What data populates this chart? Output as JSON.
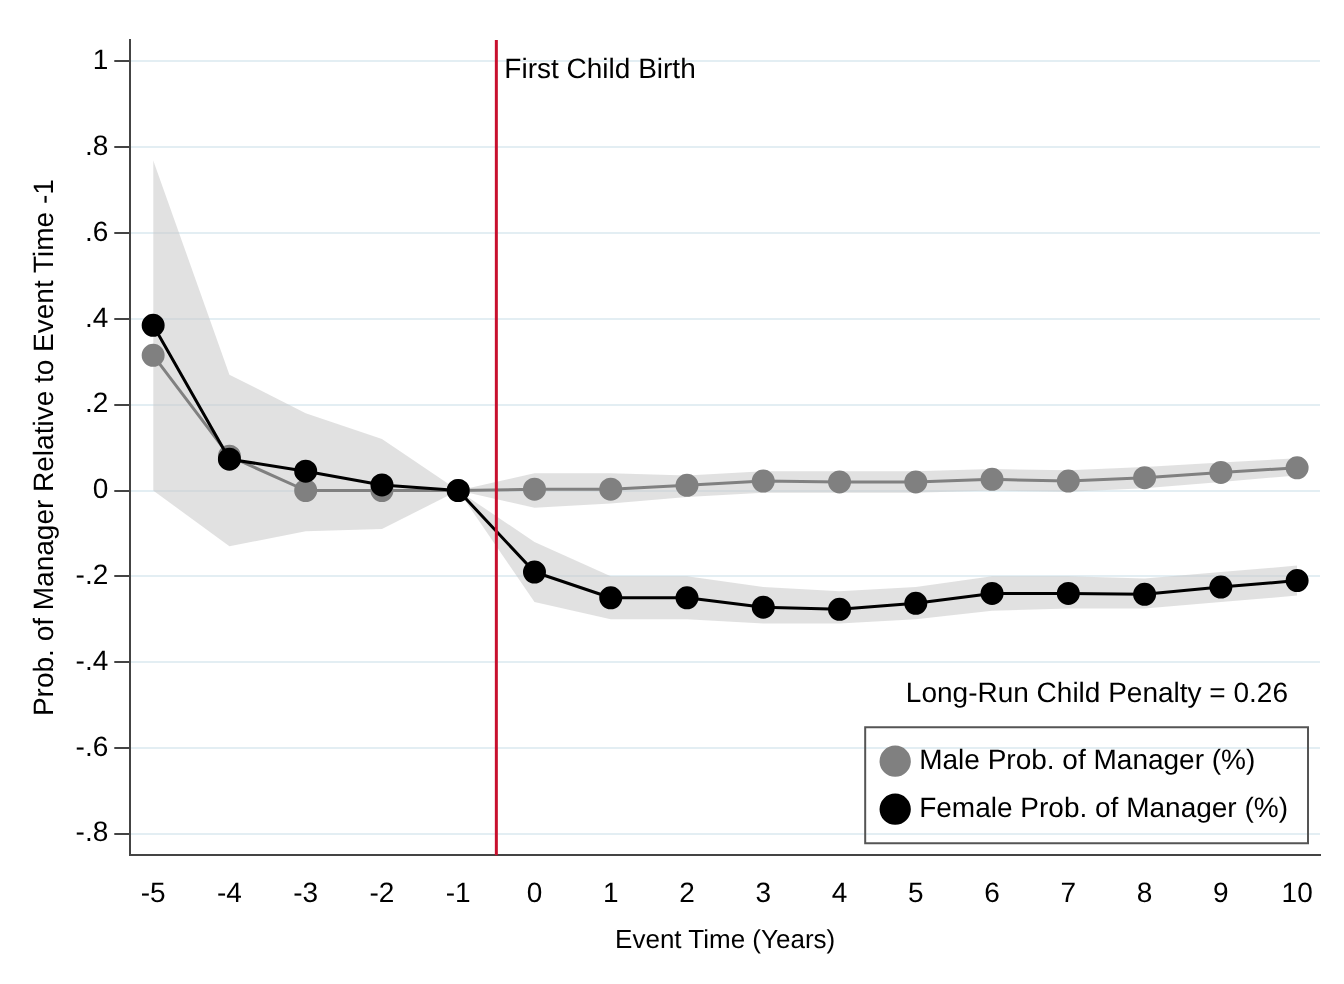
{
  "chart_data": {
    "type": "line",
    "xlabel": "Event Time (Years)",
    "ylabel": "Prob. of Manager Relative to Event Time -1",
    "x": [
      -5,
      -4,
      -3,
      -2,
      -1,
      0,
      1,
      2,
      3,
      4,
      5,
      6,
      7,
      8,
      9,
      10
    ],
    "series": [
      {
        "name": "Male Prob. of Manager (%)",
        "color": "#808080",
        "values": [
          0.315,
          0.08,
          0,
          0,
          0,
          0.003,
          0.003,
          0.012,
          0.022,
          0.02,
          0.02,
          0.026,
          0.022,
          0.03,
          0.042,
          0.053
        ],
        "lower": [
          null,
          null,
          null,
          null,
          0,
          -0.04,
          -0.03,
          -0.015,
          -0.005,
          -0.005,
          -0.005,
          0,
          -0.003,
          0.005,
          0.02,
          0.035
        ],
        "upper": [
          null,
          null,
          null,
          null,
          0,
          0.04,
          0.04,
          0.035,
          0.045,
          0.045,
          0.045,
          0.05,
          0.047,
          0.055,
          0.065,
          0.075
        ]
      },
      {
        "name": "Female Prob. of Manager (%)",
        "color": "#000000",
        "values": [
          0.385,
          0.073,
          0.045,
          0.013,
          0,
          -0.19,
          -0.25,
          -0.25,
          -0.272,
          -0.277,
          -0.263,
          -0.24,
          -0.24,
          -0.242,
          -0.225,
          -0.21
        ],
        "lower": [
          0,
          -0.13,
          -0.095,
          -0.09,
          0,
          -0.26,
          -0.3,
          -0.3,
          -0.31,
          -0.31,
          -0.3,
          -0.28,
          -0.275,
          -0.275,
          -0.26,
          -0.245
        ],
        "upper": [
          0.77,
          0.27,
          0.18,
          0.12,
          0,
          -0.12,
          -0.2,
          -0.2,
          -0.225,
          -0.235,
          -0.225,
          -0.2,
          -0.2,
          -0.205,
          -0.19,
          -0.175
        ]
      }
    ],
    "xlim": [
      -5.3,
      10.3
    ],
    "xticks": [
      -5,
      -4,
      -3,
      -2,
      -1,
      0,
      1,
      2,
      3,
      4,
      5,
      6,
      7,
      8,
      9,
      10
    ],
    "ylim": [
      -0.85,
      1.05
    ],
    "yticks": [
      {
        "value": -0.8,
        "label": "-.8"
      },
      {
        "value": -0.6,
        "label": "-.6"
      },
      {
        "value": -0.4,
        "label": "-.4"
      },
      {
        "value": -0.2,
        "label": "-.2"
      },
      0,
      {
        "value": 0.2,
        "label": ".2"
      },
      {
        "value": 0.4,
        "label": ".4"
      },
      {
        "value": 0.6,
        "label": ".6"
      },
      {
        "value": 0.8,
        "label": ".8"
      },
      1
    ],
    "ref_lines": [
      {
        "axis": "x",
        "value": -0.5,
        "label": "First Child Birth",
        "color": "#c8102e"
      }
    ],
    "annotations": [
      "Long-Run Child Penalty = 0.26"
    ],
    "grid": "y",
    "legend": "bottom right",
    "marker": "circle",
    "line_style": "solid"
  }
}
